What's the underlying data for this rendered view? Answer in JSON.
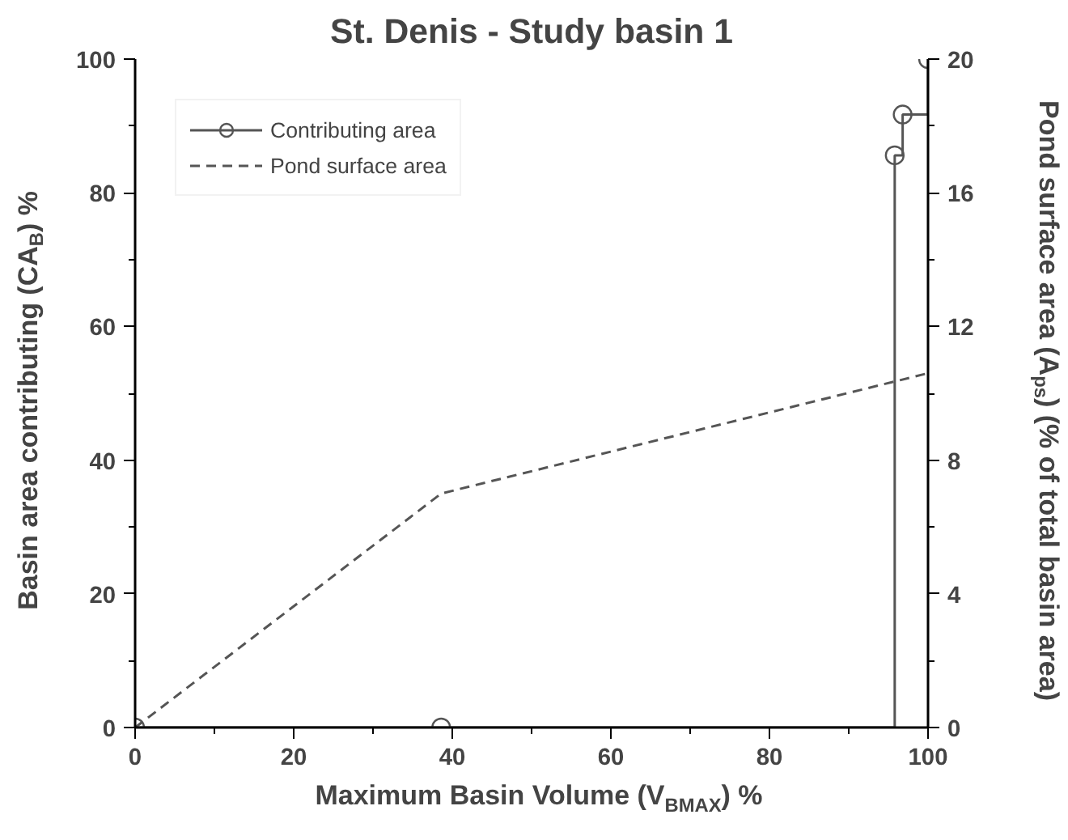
{
  "chart_data": {
    "type": "line",
    "title": "St. Denis - Study basin 1",
    "xlabel": "Maximum Basin Volume (V$_{BMAX}$) %",
    "ylabel": "Basin area contributing (CA$_{B}$) %",
    "y2label": "Pond surface area (A$_{ps}$) (% of total basin area)",
    "series": [
      {
        "name": "Contributing area",
        "type": "step",
        "color": "#555555",
        "marker": "circle",
        "line_style": "solid",
        "x": [
          0,
          38.6,
          95.8,
          96.8,
          100
        ],
        "values": [
          0,
          0,
          85.6,
          91.7,
          100
        ]
      },
      {
        "name": "Pond surface area",
        "type": "line",
        "color": "#555555",
        "marker": "none",
        "line_style": "dashed",
        "axis": "y2",
        "x": [
          0,
          38.6,
          100
        ],
        "values": [
          0,
          7,
          10.6
        ]
      }
    ],
    "xlim": [
      0,
      100
    ],
    "xticks": [
      0,
      20,
      40,
      60,
      80,
      100
    ],
    "ylim": [
      0,
      100
    ],
    "yticks": [
      0,
      20,
      40,
      60,
      80,
      100
    ],
    "y2lim": [
      0,
      20
    ],
    "y2ticks": [
      0,
      4,
      8,
      12,
      16,
      20
    ],
    "grid": false,
    "legend": "top left"
  }
}
